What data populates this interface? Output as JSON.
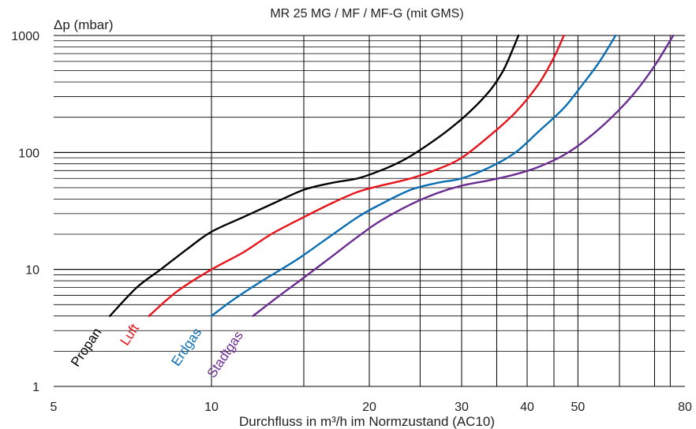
{
  "chart_data": {
    "type": "line",
    "title": "MR 25 MG / MF / MF-G (mit GMS)",
    "xlabel": "Durchfluss in m³/h im Normzustand (AC10)",
    "ylabel": "Δp (mbar)",
    "x_scale": "log",
    "y_scale": "log",
    "xlim": [
      5,
      80
    ],
    "ylim": [
      1,
      1000
    ],
    "x_ticks": [
      5,
      10,
      20,
      30,
      40,
      50,
      80
    ],
    "x_tick_labels": [
      "5",
      "10",
      "20",
      "30",
      "40",
      "50",
      "80"
    ],
    "y_ticks": [
      1,
      10,
      100,
      1000
    ],
    "y_tick_labels": [
      "1",
      "10",
      "100",
      "1000"
    ],
    "x_gridlines": [
      10,
      15,
      20,
      25,
      30,
      35,
      40,
      45,
      50,
      60,
      70,
      75
    ],
    "grid": true,
    "series": [
      {
        "name": "Propan",
        "color": "#000000",
        "points": [
          [
            6.4,
            4
          ],
          [
            7.2,
            7
          ],
          [
            8.0,
            10
          ],
          [
            9.0,
            15
          ],
          [
            10.0,
            21
          ],
          [
            11.5,
            28
          ],
          [
            13.0,
            36
          ],
          [
            15.0,
            48
          ],
          [
            17.0,
            55
          ],
          [
            19.0,
            60
          ],
          [
            21.0,
            70
          ],
          [
            23.0,
            84
          ],
          [
            25.0,
            105
          ],
          [
            28.0,
            150
          ],
          [
            31.0,
            220
          ],
          [
            34.0,
            340
          ],
          [
            36.0,
            500
          ],
          [
            37.5,
            750
          ],
          [
            38.5,
            1000
          ]
        ]
      },
      {
        "name": "Luft",
        "color": "#e8141c",
        "points": [
          [
            7.6,
            4
          ],
          [
            8.6,
            6.5
          ],
          [
            10.0,
            10
          ],
          [
            11.5,
            14
          ],
          [
            13.0,
            20
          ],
          [
            15.0,
            28
          ],
          [
            17.0,
            37
          ],
          [
            19.0,
            46
          ],
          [
            21.0,
            52
          ],
          [
            24.0,
            60
          ],
          [
            27.0,
            72
          ],
          [
            30.0,
            90
          ],
          [
            34.0,
            140
          ],
          [
            38.0,
            220
          ],
          [
            42.0,
            380
          ],
          [
            45.0,
            650
          ],
          [
            47.0,
            1000
          ]
        ]
      },
      {
        "name": "Erdgas",
        "color": "#0a6eb4",
        "points": [
          [
            10.0,
            4
          ],
          [
            11.0,
            5.5
          ],
          [
            12.5,
            8
          ],
          [
            14.5,
            12
          ],
          [
            16.5,
            18
          ],
          [
            19.0,
            28
          ],
          [
            21.0,
            36
          ],
          [
            24.0,
            48
          ],
          [
            27.0,
            55
          ],
          [
            30.0,
            60
          ],
          [
            34.0,
            75
          ],
          [
            38.0,
            100
          ],
          [
            42.0,
            150
          ],
          [
            47.0,
            240
          ],
          [
            51.0,
            380
          ],
          [
            55.0,
            600
          ],
          [
            59.0,
            1000
          ]
        ]
      },
      {
        "name": "Stadtgas",
        "color": "#6a2c91",
        "points": [
          [
            12.0,
            4
          ],
          [
            13.5,
            6
          ],
          [
            15.0,
            8.5
          ],
          [
            17.0,
            13
          ],
          [
            19.0,
            19
          ],
          [
            21.0,
            26
          ],
          [
            24.0,
            36
          ],
          [
            27.0,
            45
          ],
          [
            30.0,
            52
          ],
          [
            34.0,
            58
          ],
          [
            38.0,
            65
          ],
          [
            42.0,
            75
          ],
          [
            47.0,
            95
          ],
          [
            52.0,
            130
          ],
          [
            58.0,
            200
          ],
          [
            64.0,
            320
          ],
          [
            70.0,
            550
          ],
          [
            76.0,
            1000
          ]
        ]
      }
    ]
  }
}
